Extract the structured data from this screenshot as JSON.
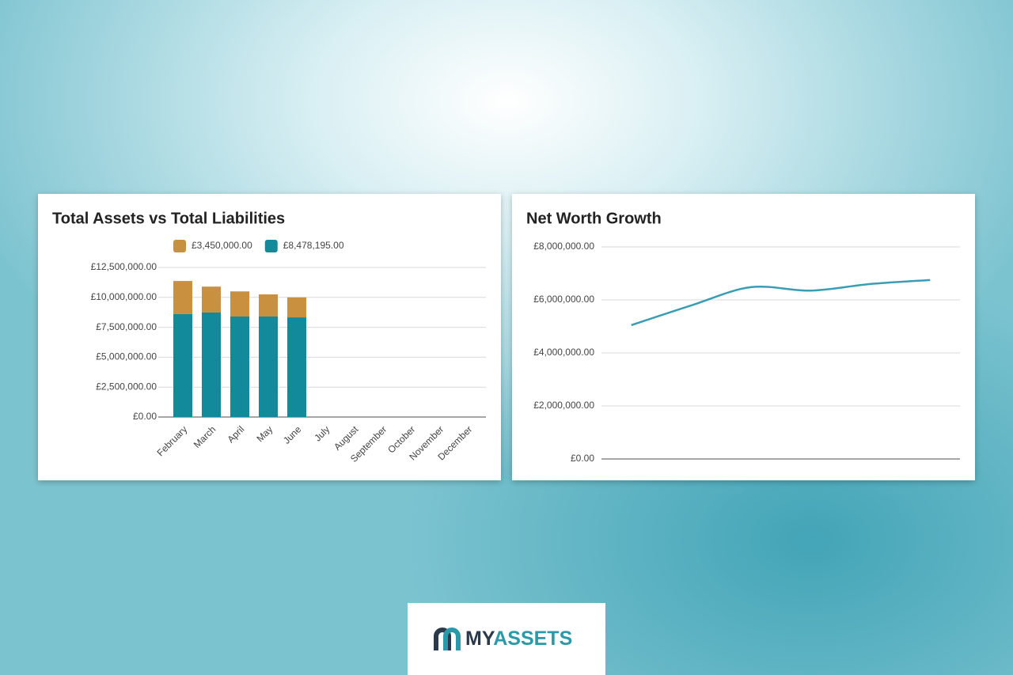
{
  "chart_data": [
    {
      "type": "bar",
      "stacked": true,
      "title": "Total Assets vs Total Liabilities",
      "categories": [
        "February",
        "March",
        "April",
        "May",
        "June",
        "July",
        "August",
        "September",
        "October",
        "November",
        "December"
      ],
      "series": [
        {
          "name": "£8,478,195.00",
          "color": "#138a9c",
          "values": [
            8600000,
            8730000,
            8400000,
            8400000,
            8330000,
            null,
            null,
            null,
            null,
            null,
            null
          ]
        },
        {
          "name": "£3,450,000.00",
          "color": "#c9913f",
          "values": [
            2770000,
            2170000,
            2100000,
            1850000,
            1670000,
            null,
            null,
            null,
            null,
            null,
            null
          ]
        }
      ],
      "legend_order": [
        1,
        0
      ],
      "ylim": [
        0,
        12500000
      ],
      "yticks": [
        {
          "value": 0,
          "label": "£0.00"
        },
        {
          "value": 2500000,
          "label": "£2,500,000.00"
        },
        {
          "value": 5000000,
          "label": "£5,000,000.00"
        },
        {
          "value": 7500000,
          "label": "£7,500,000.00"
        },
        {
          "value": 10000000,
          "label": "£10,000,000.00"
        },
        {
          "value": 12500000,
          "label": "£12,500,000.00"
        }
      ],
      "grid": true
    },
    {
      "type": "line",
      "title": "Net Worth Growth",
      "categories": [
        null,
        null,
        null,
        null,
        null,
        null
      ],
      "series": [
        {
          "name": null,
          "color": "#3a9db3",
          "values": [
            5050000,
            5790000,
            6480000,
            6350000,
            6600000,
            6750000
          ]
        }
      ],
      "ylim": [
        0,
        8000000
      ],
      "yticks": [
        {
          "value": 0,
          "label": "£0.00"
        },
        {
          "value": 2000000,
          "label": "£2,000,000.00"
        },
        {
          "value": 4000000,
          "label": "£4,000,000.00"
        },
        {
          "value": 6000000,
          "label": "£6,000,000.00"
        },
        {
          "value": 8000000,
          "label": "£8,000,000.00"
        }
      ],
      "grid": true,
      "smooth": true
    }
  ],
  "logo": {
    "my": "MY",
    "assets": "ASSETS"
  }
}
